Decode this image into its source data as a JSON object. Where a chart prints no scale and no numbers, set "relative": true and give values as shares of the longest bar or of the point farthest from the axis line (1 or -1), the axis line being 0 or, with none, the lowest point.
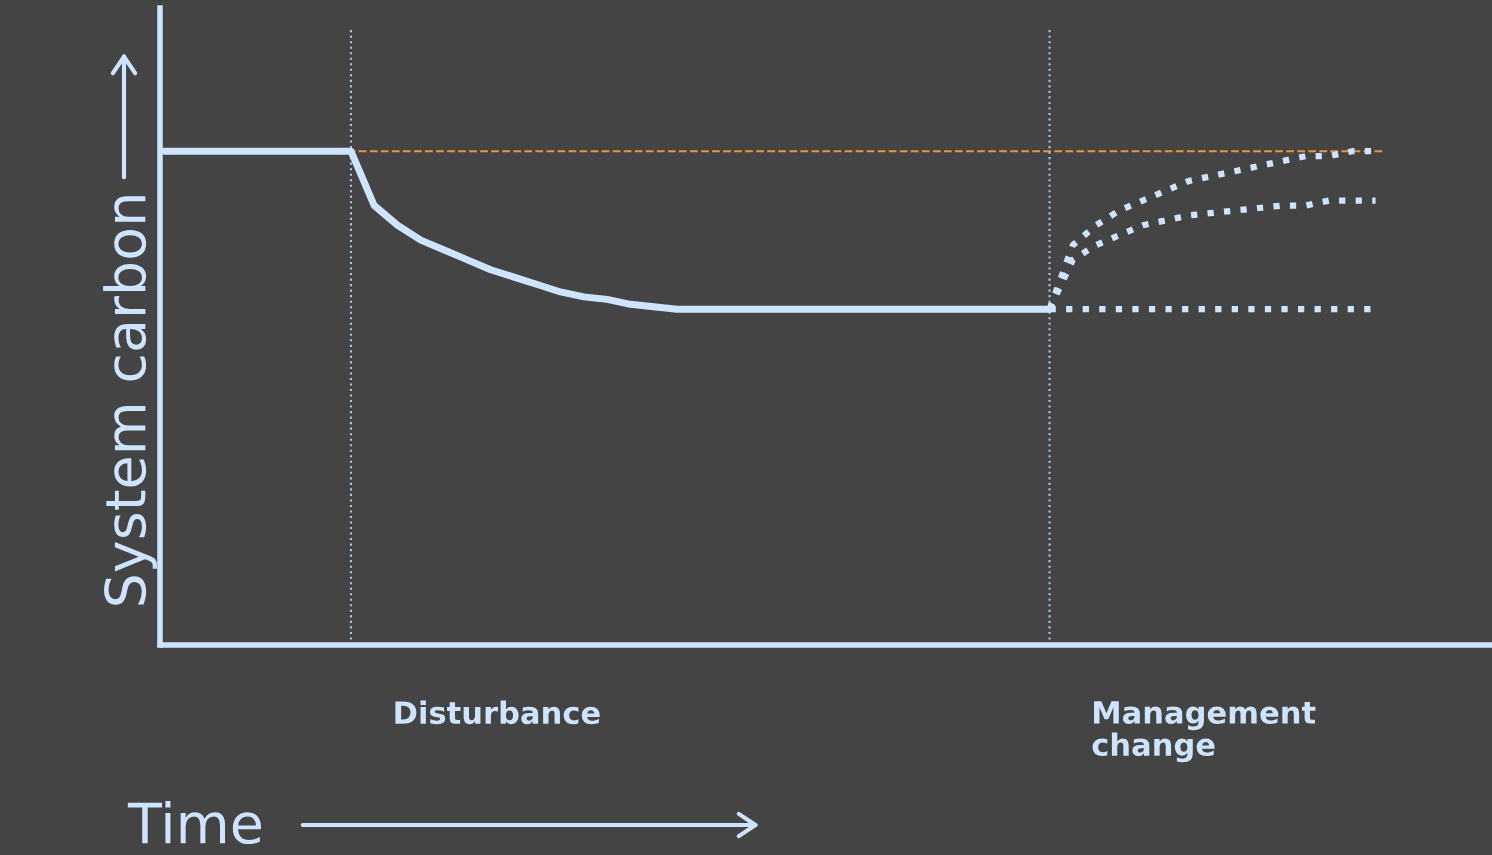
{
  "chart_data": {
    "type": "line",
    "relative": true,
    "xlabel": "Time",
    "ylabel": "System carbon",
    "categories": [
      null,
      null,
      null,
      null,
      null,
      null,
      null,
      null,
      null,
      null,
      null,
      null,
      null,
      null,
      null,
      null,
      null,
      null,
      null,
      null,
      null,
      null,
      null,
      null,
      null,
      null,
      null,
      null,
      null,
      null,
      null,
      null,
      null,
      null,
      null,
      null,
      null,
      null,
      null,
      null,
      null,
      null,
      null,
      null,
      null,
      null,
      null,
      null,
      null,
      null,
      null,
      null,
      null
    ],
    "series": [
      {
        "color": "#cfe5ff",
        "line_style": "solid",
        "values": [
          1.0,
          1.0,
          1.0,
          1.0,
          1.0,
          1.0,
          1.0,
          1.0,
          1.0,
          0.89,
          0.85,
          0.82,
          0.8,
          0.78,
          0.76,
          0.745,
          0.73,
          0.715,
          0.705,
          0.7,
          0.69,
          0.685,
          0.68,
          0.68,
          0.68,
          0.68,
          0.68,
          0.68,
          0.68,
          0.68,
          0.68,
          0.68,
          0.68,
          0.68,
          0.68,
          0.68,
          0.68,
          0.68,
          0.68,
          null,
          null,
          null,
          null,
          null,
          null,
          null,
          null,
          null,
          null,
          null,
          null,
          null,
          null
        ]
      },
      {
        "color": "#cfe5ff",
        "line_style": "dotted",
        "values": [
          null,
          null,
          null,
          null,
          null,
          null,
          null,
          null,
          null,
          null,
          null,
          null,
          null,
          null,
          null,
          null,
          null,
          null,
          null,
          null,
          null,
          null,
          null,
          null,
          null,
          null,
          null,
          null,
          null,
          null,
          null,
          null,
          null,
          null,
          null,
          null,
          null,
          null,
          0.68,
          0.68,
          0.68,
          0.68,
          0.68,
          0.68,
          0.68,
          0.68,
          0.68,
          0.68,
          0.68,
          0.68,
          0.68,
          0.68,
          0.68
        ]
      },
      {
        "color": "#cfe5ff",
        "line_style": "dotted",
        "values": [
          null,
          null,
          null,
          null,
          null,
          null,
          null,
          null,
          null,
          null,
          null,
          null,
          null,
          null,
          null,
          null,
          null,
          null,
          null,
          null,
          null,
          null,
          null,
          null,
          null,
          null,
          null,
          null,
          null,
          null,
          null,
          null,
          null,
          null,
          null,
          null,
          null,
          null,
          0.68,
          0.78,
          0.81,
          0.83,
          0.85,
          0.86,
          0.87,
          0.875,
          0.88,
          0.885,
          0.89,
          0.89,
          0.9,
          0.9,
          0.9
        ]
      },
      {
        "color": "#cfe5ff",
        "line_style": "dotted",
        "values": [
          null,
          null,
          null,
          null,
          null,
          null,
          null,
          null,
          null,
          null,
          null,
          null,
          null,
          null,
          null,
          null,
          null,
          null,
          null,
          null,
          null,
          null,
          null,
          null,
          null,
          null,
          null,
          null,
          null,
          null,
          null,
          null,
          null,
          null,
          null,
          null,
          null,
          null,
          0.68,
          0.81,
          0.85,
          0.88,
          0.9,
          0.92,
          0.94,
          0.95,
          0.96,
          0.97,
          0.98,
          0.99,
          0.99,
          1.0,
          1.0
        ]
      }
    ],
    "ref_lines": [
      {
        "axis": "y",
        "value": 1.0,
        "color": "#e8963a",
        "line_style": "dashed"
      },
      {
        "axis": "y",
        "value": 0,
        "color": "#cfe5ff",
        "line_style": "solid"
      }
    ],
    "annotations": [
      "Disturbance",
      "Management\nchange"
    ],
    "legend": false,
    "marker": "none"
  }
}
